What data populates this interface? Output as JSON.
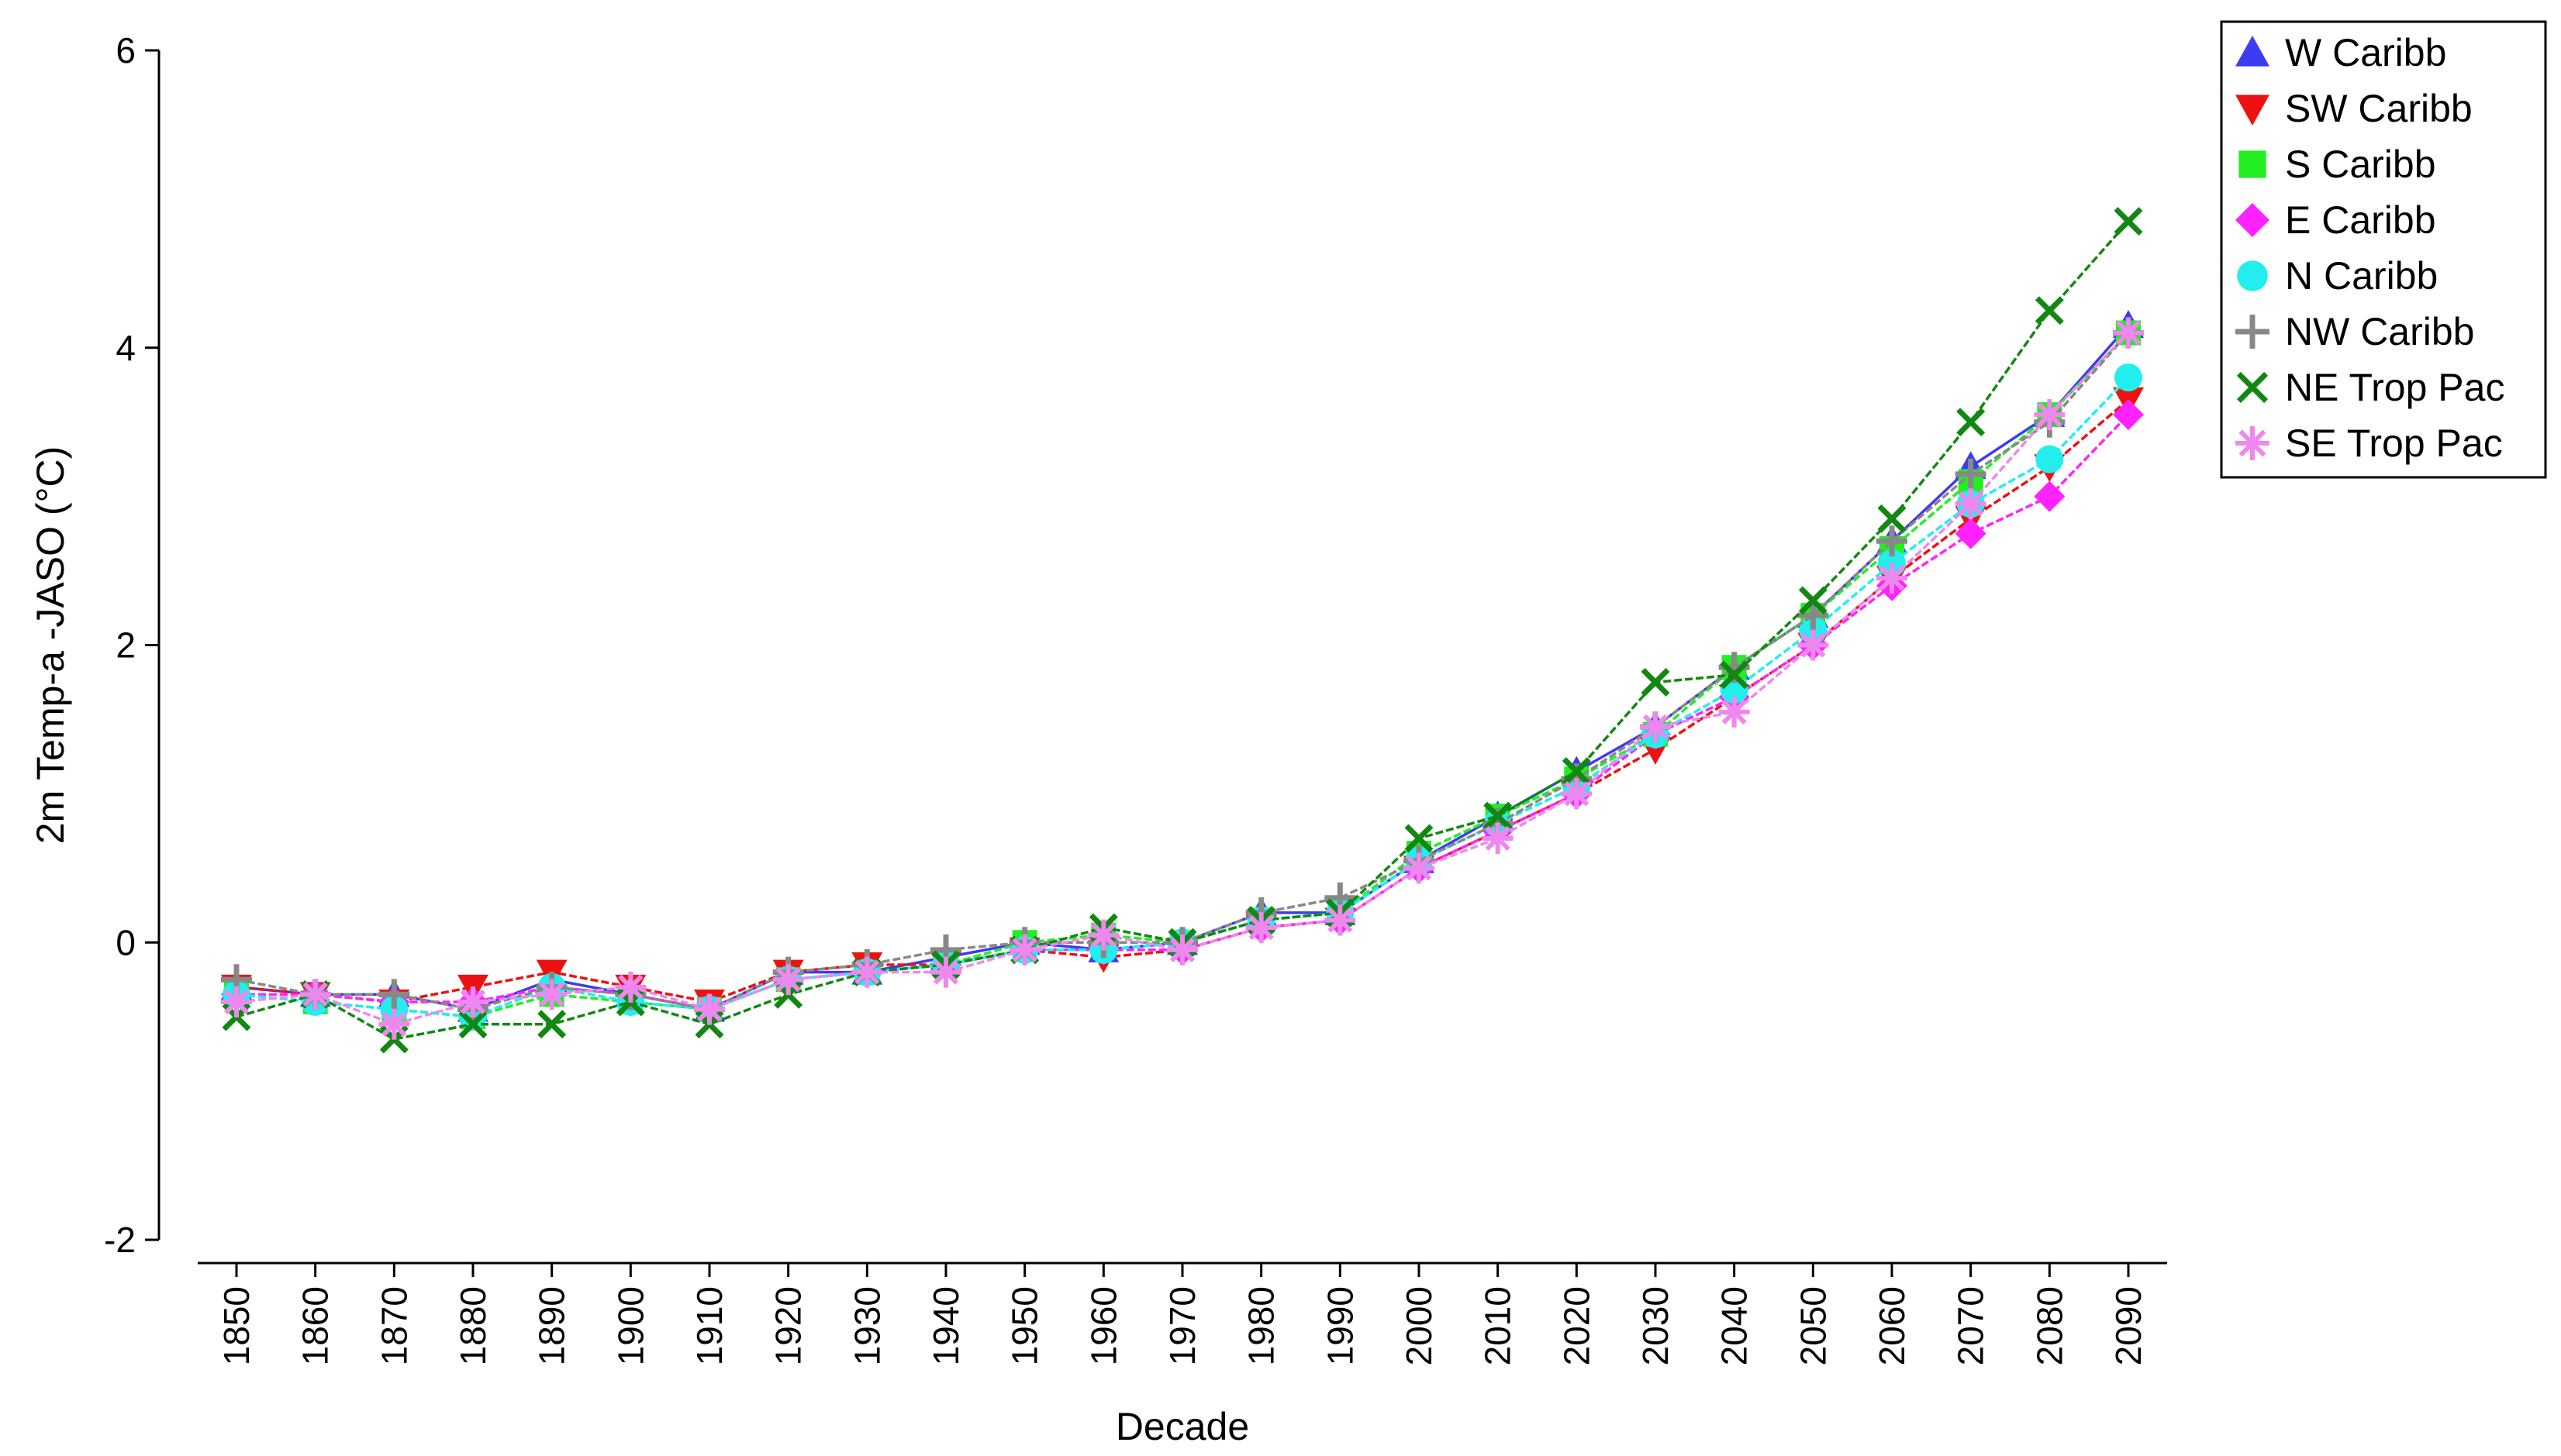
{
  "chart_data": {
    "type": "line",
    "title": "",
    "xlabel": "Decade",
    "ylabel": "2m Temp-a -JASO (°C)",
    "ylim": [
      -2,
      6
    ],
    "yticks": [
      -2,
      0,
      2,
      4,
      6
    ],
    "grid": false,
    "legend_position": "top-right",
    "x": [
      1850,
      1860,
      1870,
      1880,
      1890,
      1900,
      1910,
      1920,
      1930,
      1940,
      1950,
      1960,
      1970,
      1980,
      1990,
      2000,
      2010,
      2020,
      2030,
      2040,
      2050,
      2060,
      2070,
      2080,
      2090
    ],
    "series": [
      {
        "name": "W Caribb",
        "color": "#3c3cf0",
        "marker": "triangle-up",
        "values": [
          -0.3,
          -0.35,
          -0.35,
          -0.45,
          -0.25,
          -0.35,
          -0.45,
          -0.2,
          -0.2,
          -0.1,
          0.0,
          -0.05,
          0.0,
          0.2,
          0.2,
          0.55,
          0.85,
          1.15,
          1.45,
          1.85,
          2.2,
          2.7,
          3.2,
          3.55,
          4.15
        ]
      },
      {
        "name": "SW Caribb",
        "color": "#ee1111",
        "marker": "triangle-down",
        "values": [
          -0.3,
          -0.35,
          -0.4,
          -0.3,
          -0.2,
          -0.3,
          -0.4,
          -0.2,
          -0.15,
          -0.15,
          -0.05,
          -0.1,
          -0.05,
          0.1,
          0.15,
          0.5,
          0.75,
          1.0,
          1.3,
          1.65,
          2.0,
          2.45,
          2.85,
          3.2,
          3.65
        ]
      },
      {
        "name": "S Caribb",
        "color": "#22ee22",
        "marker": "square",
        "values": [
          -0.35,
          -0.4,
          -0.45,
          -0.5,
          -0.35,
          -0.4,
          -0.45,
          -0.25,
          -0.2,
          -0.15,
          0.0,
          0.05,
          0.0,
          0.15,
          0.2,
          0.6,
          0.85,
          1.1,
          1.4,
          1.85,
          2.2,
          2.65,
          3.1,
          3.55,
          4.1
        ]
      },
      {
        "name": "E Caribb",
        "color": "#ff22ff",
        "marker": "diamond",
        "values": [
          -0.35,
          -0.35,
          -0.4,
          -0.4,
          -0.3,
          -0.35,
          -0.45,
          -0.25,
          -0.2,
          -0.15,
          -0.05,
          -0.05,
          -0.05,
          0.1,
          0.15,
          0.5,
          0.75,
          1.0,
          1.4,
          1.65,
          2.0,
          2.4,
          2.75,
          3.0,
          3.55
        ]
      },
      {
        "name": "N Caribb",
        "color": "#22eeee",
        "marker": "circle",
        "values": [
          -0.35,
          -0.4,
          -0.45,
          -0.5,
          -0.3,
          -0.4,
          -0.45,
          -0.25,
          -0.2,
          -0.15,
          -0.05,
          -0.05,
          0.0,
          0.15,
          0.2,
          0.55,
          0.8,
          1.05,
          1.4,
          1.7,
          2.1,
          2.55,
          2.95,
          3.25,
          3.8
        ]
      },
      {
        "name": "NW Caribb",
        "color": "#888888",
        "marker": "plus",
        "values": [
          -0.25,
          -0.35,
          -0.35,
          -0.45,
          -0.3,
          -0.35,
          -0.45,
          -0.2,
          -0.15,
          -0.05,
          0.0,
          0.0,
          0.0,
          0.2,
          0.3,
          0.55,
          0.8,
          1.1,
          1.45,
          1.85,
          2.2,
          2.7,
          3.15,
          3.5,
          4.1
        ]
      },
      {
        "name": "NE Trop Pac",
        "color": "#118811",
        "marker": "x",
        "values": [
          -0.5,
          -0.35,
          -0.65,
          -0.55,
          -0.55,
          -0.4,
          -0.55,
          -0.35,
          -0.2,
          -0.15,
          -0.05,
          0.1,
          0.0,
          0.15,
          0.2,
          0.7,
          0.85,
          1.15,
          1.75,
          1.8,
          2.3,
          2.85,
          3.5,
          4.25,
          4.85
        ]
      },
      {
        "name": "SE Trop Pac",
        "color": "#ee88ee",
        "marker": "asterisk",
        "values": [
          -0.4,
          -0.35,
          -0.55,
          -0.4,
          -0.35,
          -0.3,
          -0.45,
          -0.25,
          -0.2,
          -0.2,
          -0.05,
          0.05,
          -0.05,
          0.1,
          0.15,
          0.5,
          0.7,
          1.0,
          1.45,
          1.55,
          2.0,
          2.45,
          2.95,
          3.55,
          4.1
        ]
      }
    ]
  }
}
